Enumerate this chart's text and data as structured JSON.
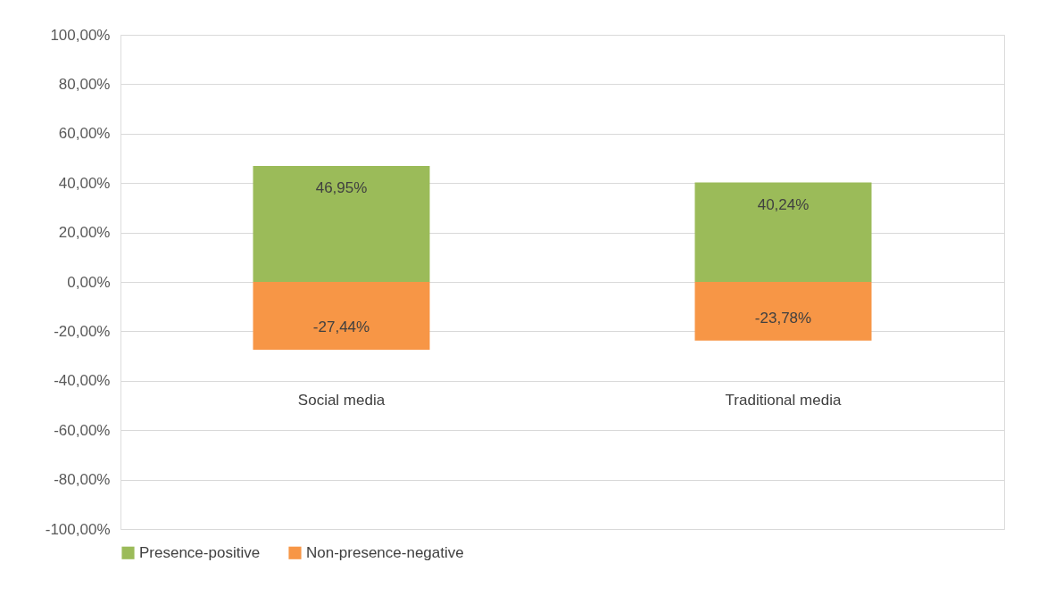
{
  "chart_data": {
    "type": "bar",
    "stacked": true,
    "categories": [
      "Social media",
      "Traditional media"
    ],
    "series": [
      {
        "name": "Presence-positive",
        "color": "#9bbb59",
        "values": [
          46.95,
          40.24
        ],
        "value_labels": [
          "46,95%",
          "40,24%"
        ]
      },
      {
        "name": "Non-presence-negative",
        "color": "#f79646",
        "values": [
          -27.44,
          -23.78
        ],
        "value_labels": [
          "-27,44%",
          "-23,78%"
        ]
      }
    ],
    "ylim": [
      -100,
      100
    ],
    "yticks": [
      {
        "value": -100,
        "label": "-100,00%"
      },
      {
        "value": -80,
        "label": "-80,00%"
      },
      {
        "value": -60,
        "label": "-60,00%"
      },
      {
        "value": -40,
        "label": "-40,00%"
      },
      {
        "value": -20,
        "label": "-20,00%"
      },
      {
        "value": 0,
        "label": "0,00%"
      },
      {
        "value": 20,
        "label": "20,00%"
      },
      {
        "value": 40,
        "label": "40,00%"
      },
      {
        "value": 60,
        "label": "60,00%"
      },
      {
        "value": 80,
        "label": "80,00%"
      },
      {
        "value": 100,
        "label": "100,00%"
      }
    ],
    "grid": "y",
    "legend": "bottom"
  }
}
